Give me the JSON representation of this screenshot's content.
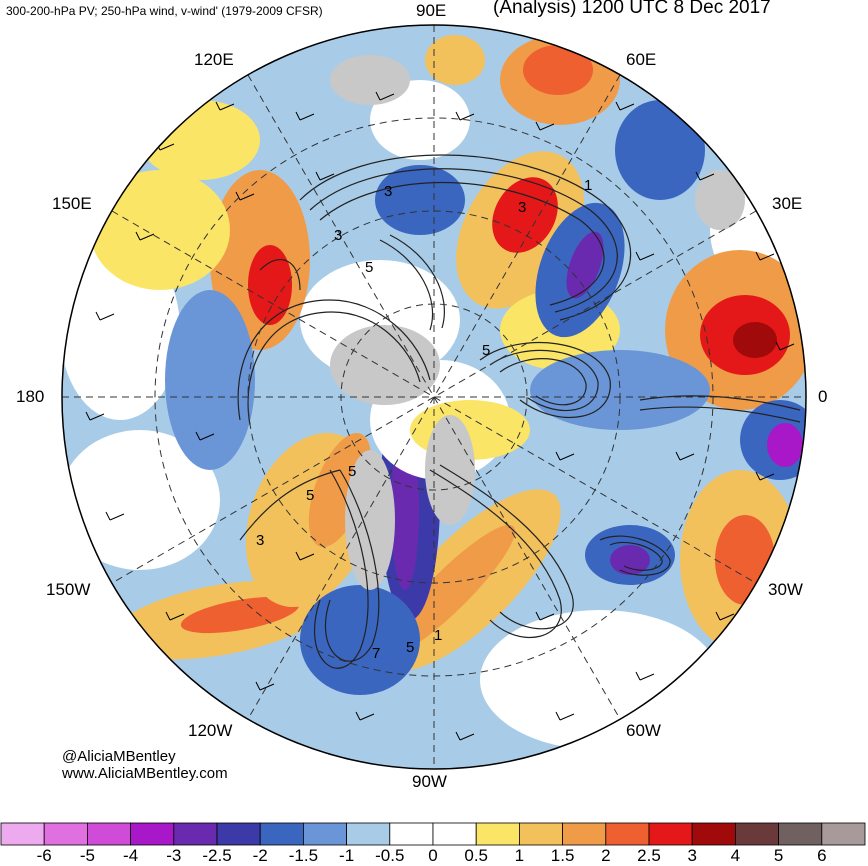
{
  "header": {
    "left_title": "300-200-hPa PV; 250-hPa wind, v-wind' (1979-2009 CFSR)",
    "right_title": "(Analysis) 1200 UTC 8 Dec 2017"
  },
  "credits": {
    "handle": "@AliciaMBentley",
    "website": "www.AliciaMBentley.com"
  },
  "longitude_labels": {
    "n90e": "90E",
    "n60e": "60E",
    "n120e": "120E",
    "n150e": "150E",
    "n30e": "30E",
    "n180": "180",
    "n0": "0",
    "n150w": "150W",
    "n30w": "30W",
    "n120w": "120W",
    "n60w": "60W",
    "n90w": "90W"
  },
  "pv_contour_labels": [
    "3",
    "3",
    "5",
    "5",
    "3",
    "1",
    "5",
    "3",
    "5",
    "7",
    "5",
    "1"
  ],
  "colorbar": {
    "labels": [
      "-6",
      "-5",
      "-4",
      "-3",
      "-2.5",
      "-2",
      "-1.5",
      "-1",
      "-0.5",
      "0",
      "0.5",
      "1",
      "1.5",
      "2",
      "2.5",
      "3",
      "4",
      "5",
      "6"
    ],
    "colors": [
      "#eeaaee",
      "#e070e0",
      "#d04bd8",
      "#a818c8",
      "#6a2ab0",
      "#3c3aa8",
      "#3a66c0",
      "#6a96d8",
      "#a8cce8",
      "#ffffff",
      "#ffffff",
      "#fbe566",
      "#f3c15c",
      "#f09b48",
      "#ee6030",
      "#e41818",
      "#a00a0a",
      "#6a3a3a",
      "#706060",
      "#a89a9a"
    ]
  }
}
